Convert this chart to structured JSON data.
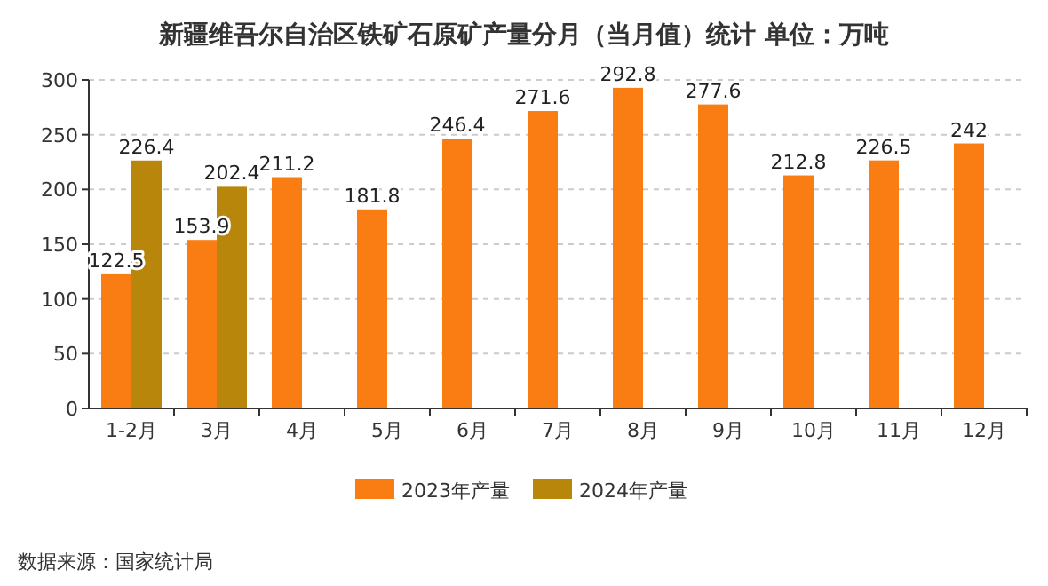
{
  "chart_data": {
    "type": "bar",
    "title": "新疆维吾尔自治区铁矿石原矿产量分月（当月值）统计  单位：万吨",
    "categories": [
      "1-2月",
      "3月",
      "4月",
      "5月",
      "6月",
      "7月",
      "8月",
      "9月",
      "10月",
      "11月",
      "12月"
    ],
    "series": [
      {
        "name": "2023年产量",
        "color": "#fa7d14",
        "values": [
          122.5,
          153.9,
          211.2,
          181.8,
          246.4,
          271.6,
          292.8,
          277.6,
          212.8,
          226.5,
          242
        ]
      },
      {
        "name": "2024年产量",
        "color": "#b8860b",
        "values": [
          226.4,
          202.4,
          null,
          null,
          null,
          null,
          null,
          null,
          null,
          null,
          null
        ]
      }
    ],
    "ylim": [
      0,
      300
    ],
    "yticks": [
      0,
      50,
      100,
      150,
      200,
      250,
      300
    ],
    "grid": "y",
    "legend": "bottom",
    "data_labels": true,
    "annotations": [
      "数据来源：国家统计局"
    ]
  }
}
